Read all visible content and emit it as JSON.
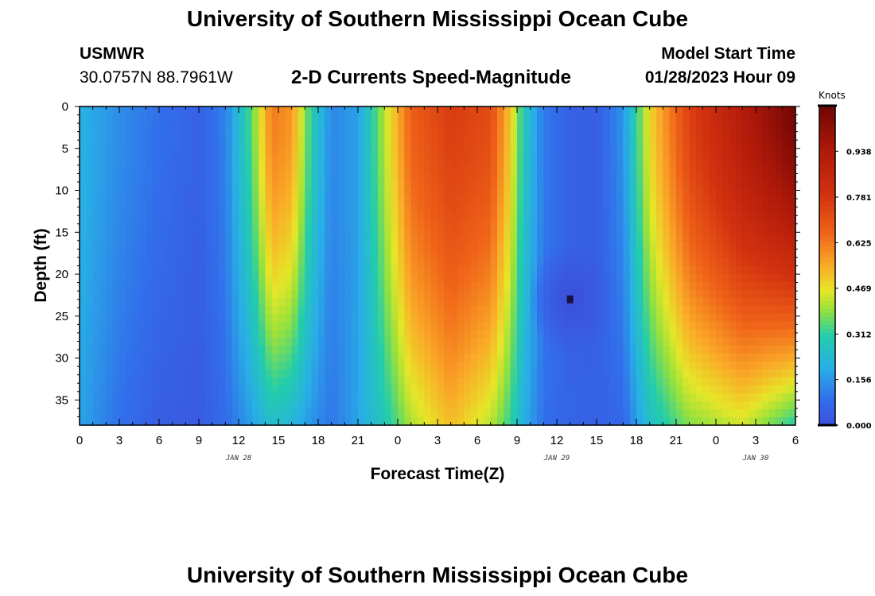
{
  "page": {
    "title_top": "University of Southern Mississippi Ocean Cube",
    "title_bottom": "University of Southern Mississippi Ocean Cube",
    "station": "USMWR",
    "coords": "30.0757N  88.7961W",
    "plot_title": "2-D Currents Speed-Magnitude",
    "model_start_label": "Model Start Time",
    "model_start_value": "01/28/2023 Hour 09"
  },
  "chart_data": {
    "type": "heatmap",
    "title": "2-D Currents Speed-Magnitude",
    "xlabel": "Forecast Time(Z)",
    "ylabel": "Depth (ft)",
    "x_tick_labels": [
      "0",
      "3",
      "6",
      "9",
      "12",
      "15",
      "18",
      "21",
      "0",
      "3",
      "6",
      "9",
      "12",
      "15",
      "18",
      "21",
      "0",
      "3",
      "6"
    ],
    "x_date_labels": [
      {
        "text": "JAN 28",
        "at_tick": 12
      },
      {
        "text": "JAN 29",
        "at_tick": 12
      },
      {
        "text": "JAN 30",
        "at_tick": 1
      }
    ],
    "y_ticks": [
      0,
      5,
      10,
      15,
      20,
      25,
      30,
      35
    ],
    "ylim": [
      0,
      38
    ],
    "xlim_hours": [
      0,
      54
    ],
    "colorbar": {
      "title": "Knots",
      "labels": [
        "0.938",
        "0.781",
        "0.625",
        "0.469",
        "0.312",
        "0.156",
        "0.000"
      ],
      "min": 0.0,
      "max": 1.094
    },
    "speed_profile": [
      {
        "hour": 0,
        "surface": 0.21,
        "bottom": 0.18
      },
      {
        "hour": 3,
        "surface": 0.14,
        "bottom": 0.09
      },
      {
        "hour": 6,
        "surface": 0.09,
        "bottom": 0.04
      },
      {
        "hour": 9,
        "surface": 0.05,
        "bottom": 0.03
      },
      {
        "hour": 11,
        "surface": 0.12,
        "bottom": 0.08
      },
      {
        "hour": 13,
        "surface": 0.35,
        "bottom": 0.17
      },
      {
        "hour": 14.5,
        "surface": 0.62,
        "bottom": 0.25
      },
      {
        "hour": 16,
        "surface": 0.58,
        "bottom": 0.22
      },
      {
        "hour": 17.5,
        "surface": 0.3,
        "bottom": 0.15
      },
      {
        "hour": 19,
        "surface": 0.13,
        "bottom": 0.1
      },
      {
        "hour": 21,
        "surface": 0.17,
        "bottom": 0.18
      },
      {
        "hour": 23,
        "surface": 0.42,
        "bottom": 0.28
      },
      {
        "hour": 25,
        "surface": 0.67,
        "bottom": 0.41
      },
      {
        "hour": 28,
        "surface": 0.76,
        "bottom": 0.52
      },
      {
        "hour": 31,
        "surface": 0.72,
        "bottom": 0.42
      },
      {
        "hour": 32.5,
        "surface": 0.5,
        "bottom": 0.32
      },
      {
        "hour": 33.5,
        "surface": 0.28,
        "bottom": 0.2
      },
      {
        "hour": 35,
        "surface": 0.11,
        "bottom": 0.09
      },
      {
        "hour": 37,
        "surface": 0.05,
        "bottom": 0.06
      },
      {
        "hour": 39,
        "surface": 0.04,
        "bottom": 0.05
      },
      {
        "hour": 41,
        "surface": 0.15,
        "bottom": 0.07
      },
      {
        "hour": 43,
        "surface": 0.48,
        "bottom": 0.25
      },
      {
        "hour": 46,
        "surface": 0.75,
        "bottom": 0.38
      },
      {
        "hour": 50,
        "surface": 0.92,
        "bottom": 0.44
      },
      {
        "hour": 54,
        "surface": 1.08,
        "bottom": 0.3
      }
    ],
    "minimum_spot": {
      "hour": 37,
      "depth_ft": 23,
      "value": 0.0
    }
  }
}
